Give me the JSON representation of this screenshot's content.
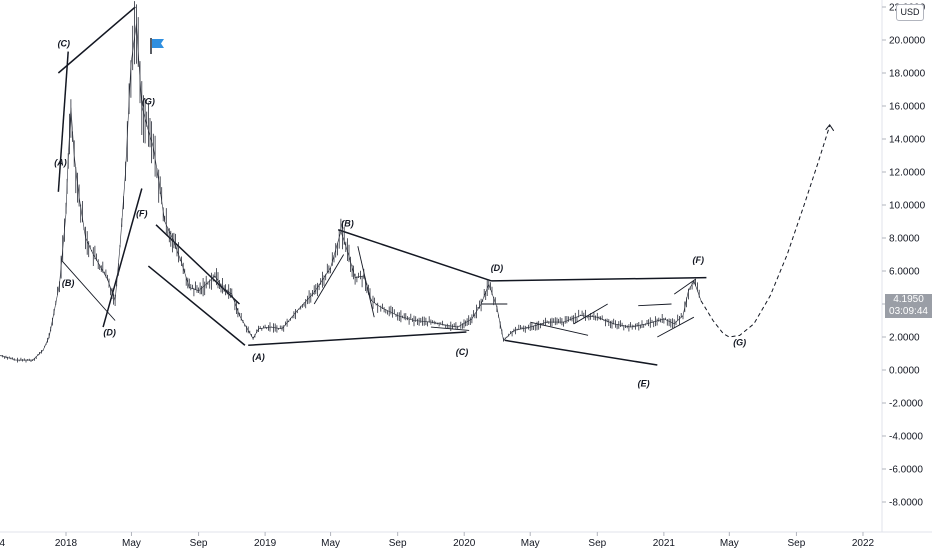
{
  "currency": "USD",
  "price_tag": {
    "price": "4.1950",
    "countdown": "03:09:44"
  },
  "chart_data": {
    "type": "line",
    "title": "",
    "xlabel": "",
    "ylabel": "",
    "ylim": [
      -9.5,
      22.5
    ],
    "grid": false,
    "y_ticks": [
      "22.0000",
      "20.0000",
      "18.0000",
      "16.0000",
      "14.0000",
      "12.0000",
      "10.0000",
      "8.0000",
      "6.0000",
      "4.0000",
      "2.0000",
      "0.0000",
      "-2.0000",
      "-4.0000",
      "-6.0000",
      "-8.0000"
    ],
    "y_tick_values": [
      22,
      20,
      18,
      16,
      14,
      12,
      10,
      8,
      6,
      4,
      2,
      0,
      -2,
      -4,
      -6,
      -8
    ],
    "x_ticks": [
      {
        "label": "4",
        "date": "2017-09-01"
      },
      {
        "label": "2018",
        "date": "2018-01-01"
      },
      {
        "label": "May",
        "date": "2018-05-01"
      },
      {
        "label": "Sep",
        "date": "2018-09-01"
      },
      {
        "label": "2019",
        "date": "2019-01-01"
      },
      {
        "label": "May",
        "date": "2019-05-01"
      },
      {
        "label": "Sep",
        "date": "2019-09-01"
      },
      {
        "label": "2020",
        "date": "2020-01-01"
      },
      {
        "label": "May",
        "date": "2020-05-01"
      },
      {
        "label": "Sep",
        "date": "2020-09-01"
      },
      {
        "label": "2021",
        "date": "2021-01-01"
      },
      {
        "label": "May",
        "date": "2021-05-01"
      },
      {
        "label": "Sep",
        "date": "2021-09-01"
      },
      {
        "label": "2022",
        "date": "2022-01-01"
      }
    ],
    "price_series": {
      "x": [
        "2017-09-01",
        "2017-10-01",
        "2017-11-01",
        "2017-11-20",
        "2017-12-01",
        "2017-12-10",
        "2017-12-20",
        "2018-01-01",
        "2018-01-05",
        "2018-01-10",
        "2018-01-16",
        "2018-01-25",
        "2018-02-06",
        "2018-02-20",
        "2018-03-01",
        "2018-03-18",
        "2018-04-01",
        "2018-04-10",
        "2018-04-20",
        "2018-04-30",
        "2018-05-10",
        "2018-05-20",
        "2018-06-01",
        "2018-06-10",
        "2018-06-20",
        "2018-07-01",
        "2018-07-15",
        "2018-08-01",
        "2018-08-15",
        "2018-09-01",
        "2018-09-15",
        "2018-10-01",
        "2018-10-15",
        "2018-11-01",
        "2018-11-15",
        "2018-12-01",
        "2018-12-10",
        "2018-12-20",
        "2019-01-10",
        "2019-02-01",
        "2019-03-01",
        "2019-04-01",
        "2019-05-01",
        "2019-05-20",
        "2019-06-01",
        "2019-06-15",
        "2019-07-01",
        "2019-07-15",
        "2019-08-01",
        "2019-09-01",
        "2019-10-01",
        "2019-11-01",
        "2019-12-01",
        "2019-12-20",
        "2020-01-15",
        "2020-02-01",
        "2020-02-15",
        "2020-03-01",
        "2020-03-13",
        "2020-04-01",
        "2020-05-01",
        "2020-06-01",
        "2020-07-01",
        "2020-08-01",
        "2020-09-01",
        "2020-10-01",
        "2020-11-01",
        "2020-12-01",
        "2021-01-01",
        "2021-01-20",
        "2021-02-05",
        "2021-02-15",
        "2021-02-25",
        "2021-03-10"
      ],
      "y": [
        0.9,
        0.6,
        0.6,
        1.2,
        2.0,
        3.5,
        5.2,
        9.5,
        12.8,
        15.9,
        13.0,
        10.5,
        8.0,
        7.0,
        6.5,
        5.5,
        4.2,
        7.5,
        12.0,
        18.5,
        21.0,
        16.0,
        14.5,
        13.5,
        11.5,
        9.0,
        8.0,
        6.5,
        5.0,
        4.8,
        5.2,
        5.7,
        5.0,
        4.6,
        3.3,
        2.4,
        1.9,
        2.5,
        2.6,
        2.5,
        3.6,
        4.7,
        6.2,
        8.4,
        7.2,
        5.6,
        5.7,
        4.2,
        3.8,
        3.3,
        3.0,
        2.9,
        2.7,
        2.6,
        3.1,
        4.0,
        5.2,
        3.8,
        1.8,
        2.4,
        2.6,
        2.9,
        2.9,
        3.3,
        3.2,
        2.8,
        2.6,
        2.8,
        3.1,
        2.8,
        3.3,
        4.8,
        5.4,
        4.2
      ]
    },
    "projection": {
      "x": [
        "2021-03-10",
        "2021-04-01",
        "2021-04-20",
        "2021-05-01",
        "2021-05-20",
        "2021-06-15",
        "2021-07-15",
        "2021-08-15",
        "2021-09-15",
        "2021-10-10",
        "2021-11-01"
      ],
      "y": [
        4.2,
        3.0,
        2.2,
        2.0,
        2.1,
        2.8,
        4.5,
        7.0,
        10.0,
        12.5,
        14.8
      ]
    },
    "trendlines": [
      {
        "x1": "2017-12-18",
        "y1": 10.8,
        "x2": "2018-01-05",
        "y2": 19.3
      },
      {
        "x1": "2017-12-18",
        "y1": 18.0,
        "x2": "2018-05-08",
        "y2": 22.0
      },
      {
        "x1": "2017-12-25",
        "y1": 6.6,
        "x2": "2018-04-01",
        "y2": 3.0
      },
      {
        "x1": "2018-03-10",
        "y1": 2.6,
        "x2": "2018-05-20",
        "y2": 11.0
      },
      {
        "x1": "2018-12-01",
        "y1": 1.5,
        "x2": "2020-01-05",
        "y2": 2.3
      },
      {
        "x1": "2019-05-15",
        "y1": 8.5,
        "x2": "2020-02-20",
        "y2": 5.4
      },
      {
        "x1": "2020-02-20",
        "y1": 5.4,
        "x2": "2021-03-20",
        "y2": 5.6
      },
      {
        "x1": "2020-03-15",
        "y1": 1.8,
        "x2": "2020-12-20",
        "y2": 0.3
      },
      {
        "x1": "2018-06-15",
        "y1": 8.8,
        "x2": "2018-11-15",
        "y2": 4.0
      },
      {
        "x1": "2018-06-01",
        "y1": 6.3,
        "x2": "2018-11-25",
        "y2": 1.5
      },
      {
        "x1": "2019-04-01",
        "y1": 4.0,
        "x2": "2019-05-25",
        "y2": 7.0
      },
      {
        "x1": "2019-06-20",
        "y1": 7.5,
        "x2": "2019-07-20",
        "y2": 3.2
      },
      {
        "x1": "2019-11-01",
        "y1": 2.6,
        "x2": "2020-01-10",
        "y2": 2.4
      },
      {
        "x1": "2020-02-01",
        "y1": 4.0,
        "x2": "2020-03-20",
        "y2": 4.0
      },
      {
        "x1": "2020-05-01",
        "y1": 2.9,
        "x2": "2020-08-15",
        "y2": 2.1
      },
      {
        "x1": "2020-07-20",
        "y1": 2.8,
        "x2": "2020-09-20",
        "y2": 4.0
      },
      {
        "x1": "2020-11-15",
        "y1": 3.9,
        "x2": "2021-01-15",
        "y2": 4.0
      },
      {
        "x1": "2020-12-20",
        "y1": 2.0,
        "x2": "2021-02-25",
        "y2": 3.2
      },
      {
        "x1": "2021-01-20",
        "y1": 4.6,
        "x2": "2021-02-28",
        "y2": 5.5
      }
    ],
    "wave_labels": [
      {
        "text": "(A)",
        "x": "2017-12-22",
        "y": 12.4
      },
      {
        "text": "(B)",
        "x": "2018-01-05",
        "y": 5.1
      },
      {
        "text": "(C)",
        "x": "2017-12-28",
        "y": 19.6
      },
      {
        "text": "(D)",
        "x": "2018-03-22",
        "y": 2.1
      },
      {
        "text": "(F)",
        "x": "2018-05-20",
        "y": 9.3
      },
      {
        "text": "(G)",
        "x": "2018-06-01",
        "y": 16.1
      },
      {
        "text": "(A)",
        "x": "2018-12-20",
        "y": 0.6
      },
      {
        "text": "(B)",
        "x": "2019-06-01",
        "y": 8.7
      },
      {
        "text": "(C)",
        "x": "2019-12-28",
        "y": 0.9
      },
      {
        "text": "(D)",
        "x": "2020-03-01",
        "y": 6.0
      },
      {
        "text": "(E)",
        "x": "2020-11-25",
        "y": -1.0
      },
      {
        "text": "(F)",
        "x": "2021-03-05",
        "y": 6.5
      },
      {
        "text": "(G)",
        "x": "2021-05-20",
        "y": 1.5
      }
    ]
  }
}
